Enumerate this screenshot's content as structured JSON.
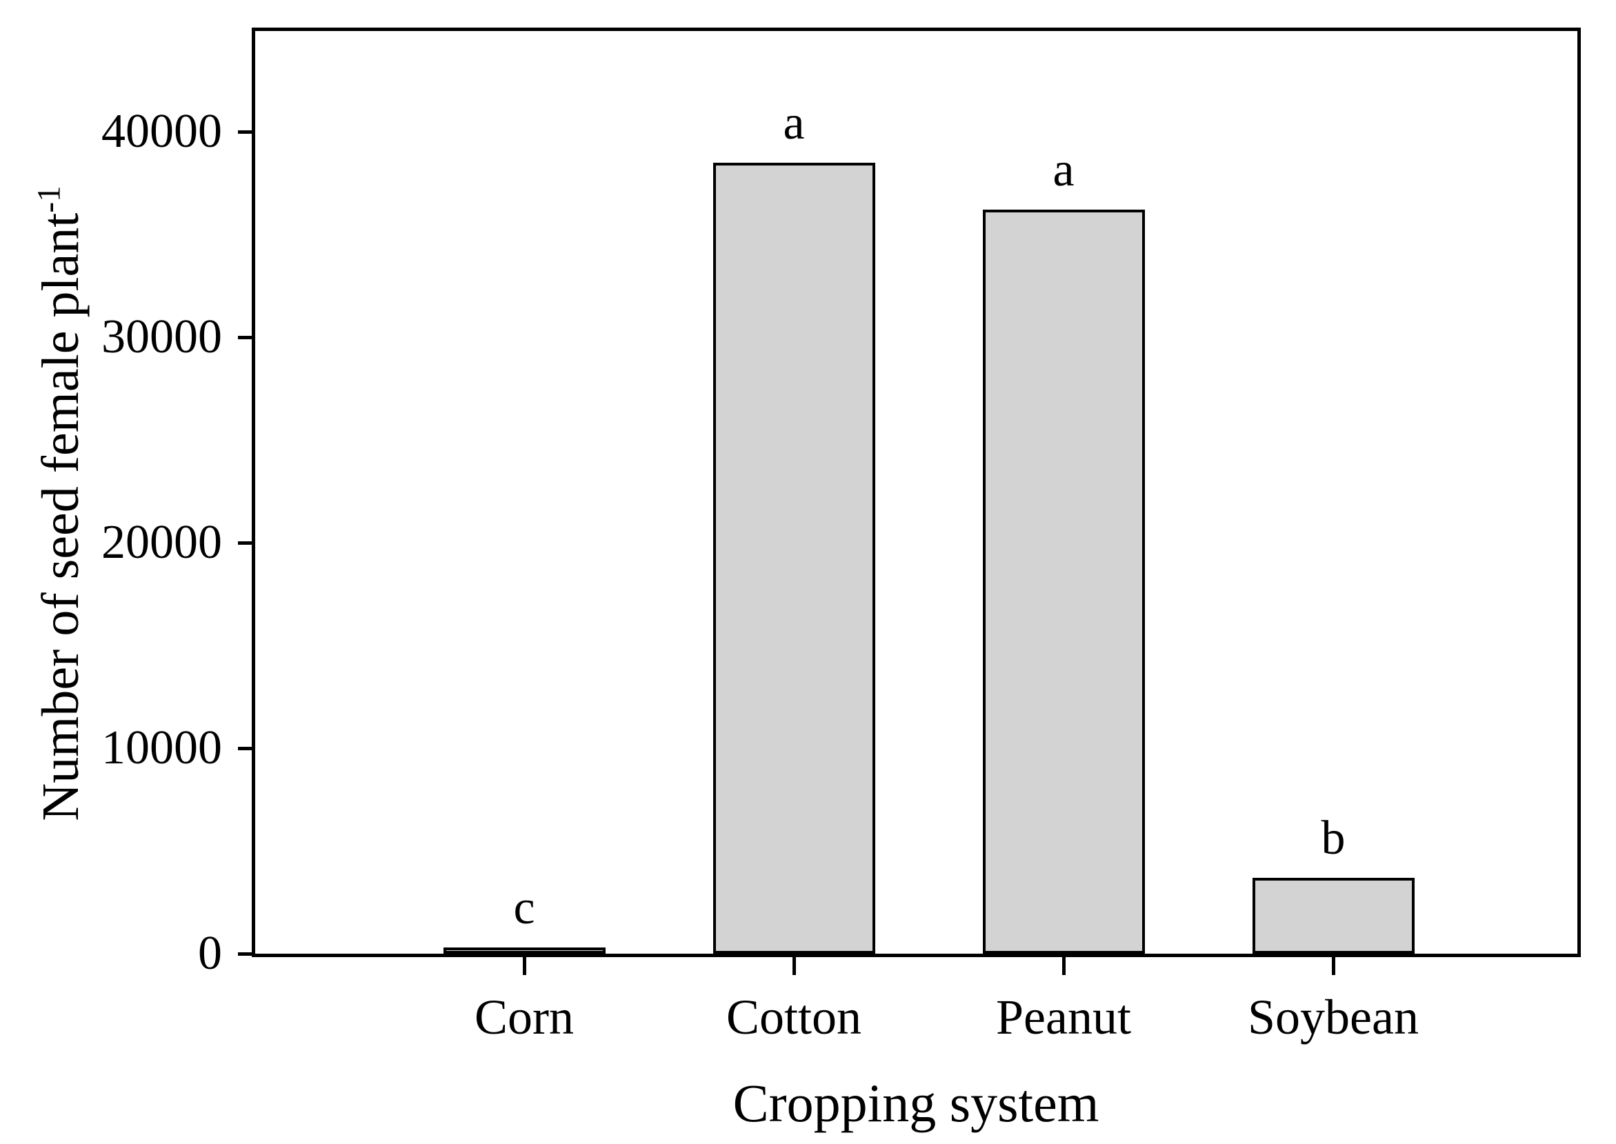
{
  "chart_data": {
    "type": "bar",
    "title": "",
    "xlabel": "Cropping system",
    "ylabel": "Number of seed female plant",
    "ylabel_superscript": "-1",
    "categories": [
      "Corn",
      "Cotton",
      "Peanut",
      "Soybean"
    ],
    "values": [
      300,
      38500,
      36200,
      3700
    ],
    "bar_annotations": [
      "c",
      "a",
      "a",
      "b"
    ],
    "y_ticks": [
      0,
      10000,
      20000,
      30000,
      40000
    ],
    "ylim": [
      0,
      45000
    ],
    "grid": false,
    "legend": "none",
    "bar_fill_color": "#d3d3d3",
    "bar_border_color": "#000000",
    "axis_color": "#000000",
    "text_color": "#000000",
    "background_color": "#ffffff"
  }
}
